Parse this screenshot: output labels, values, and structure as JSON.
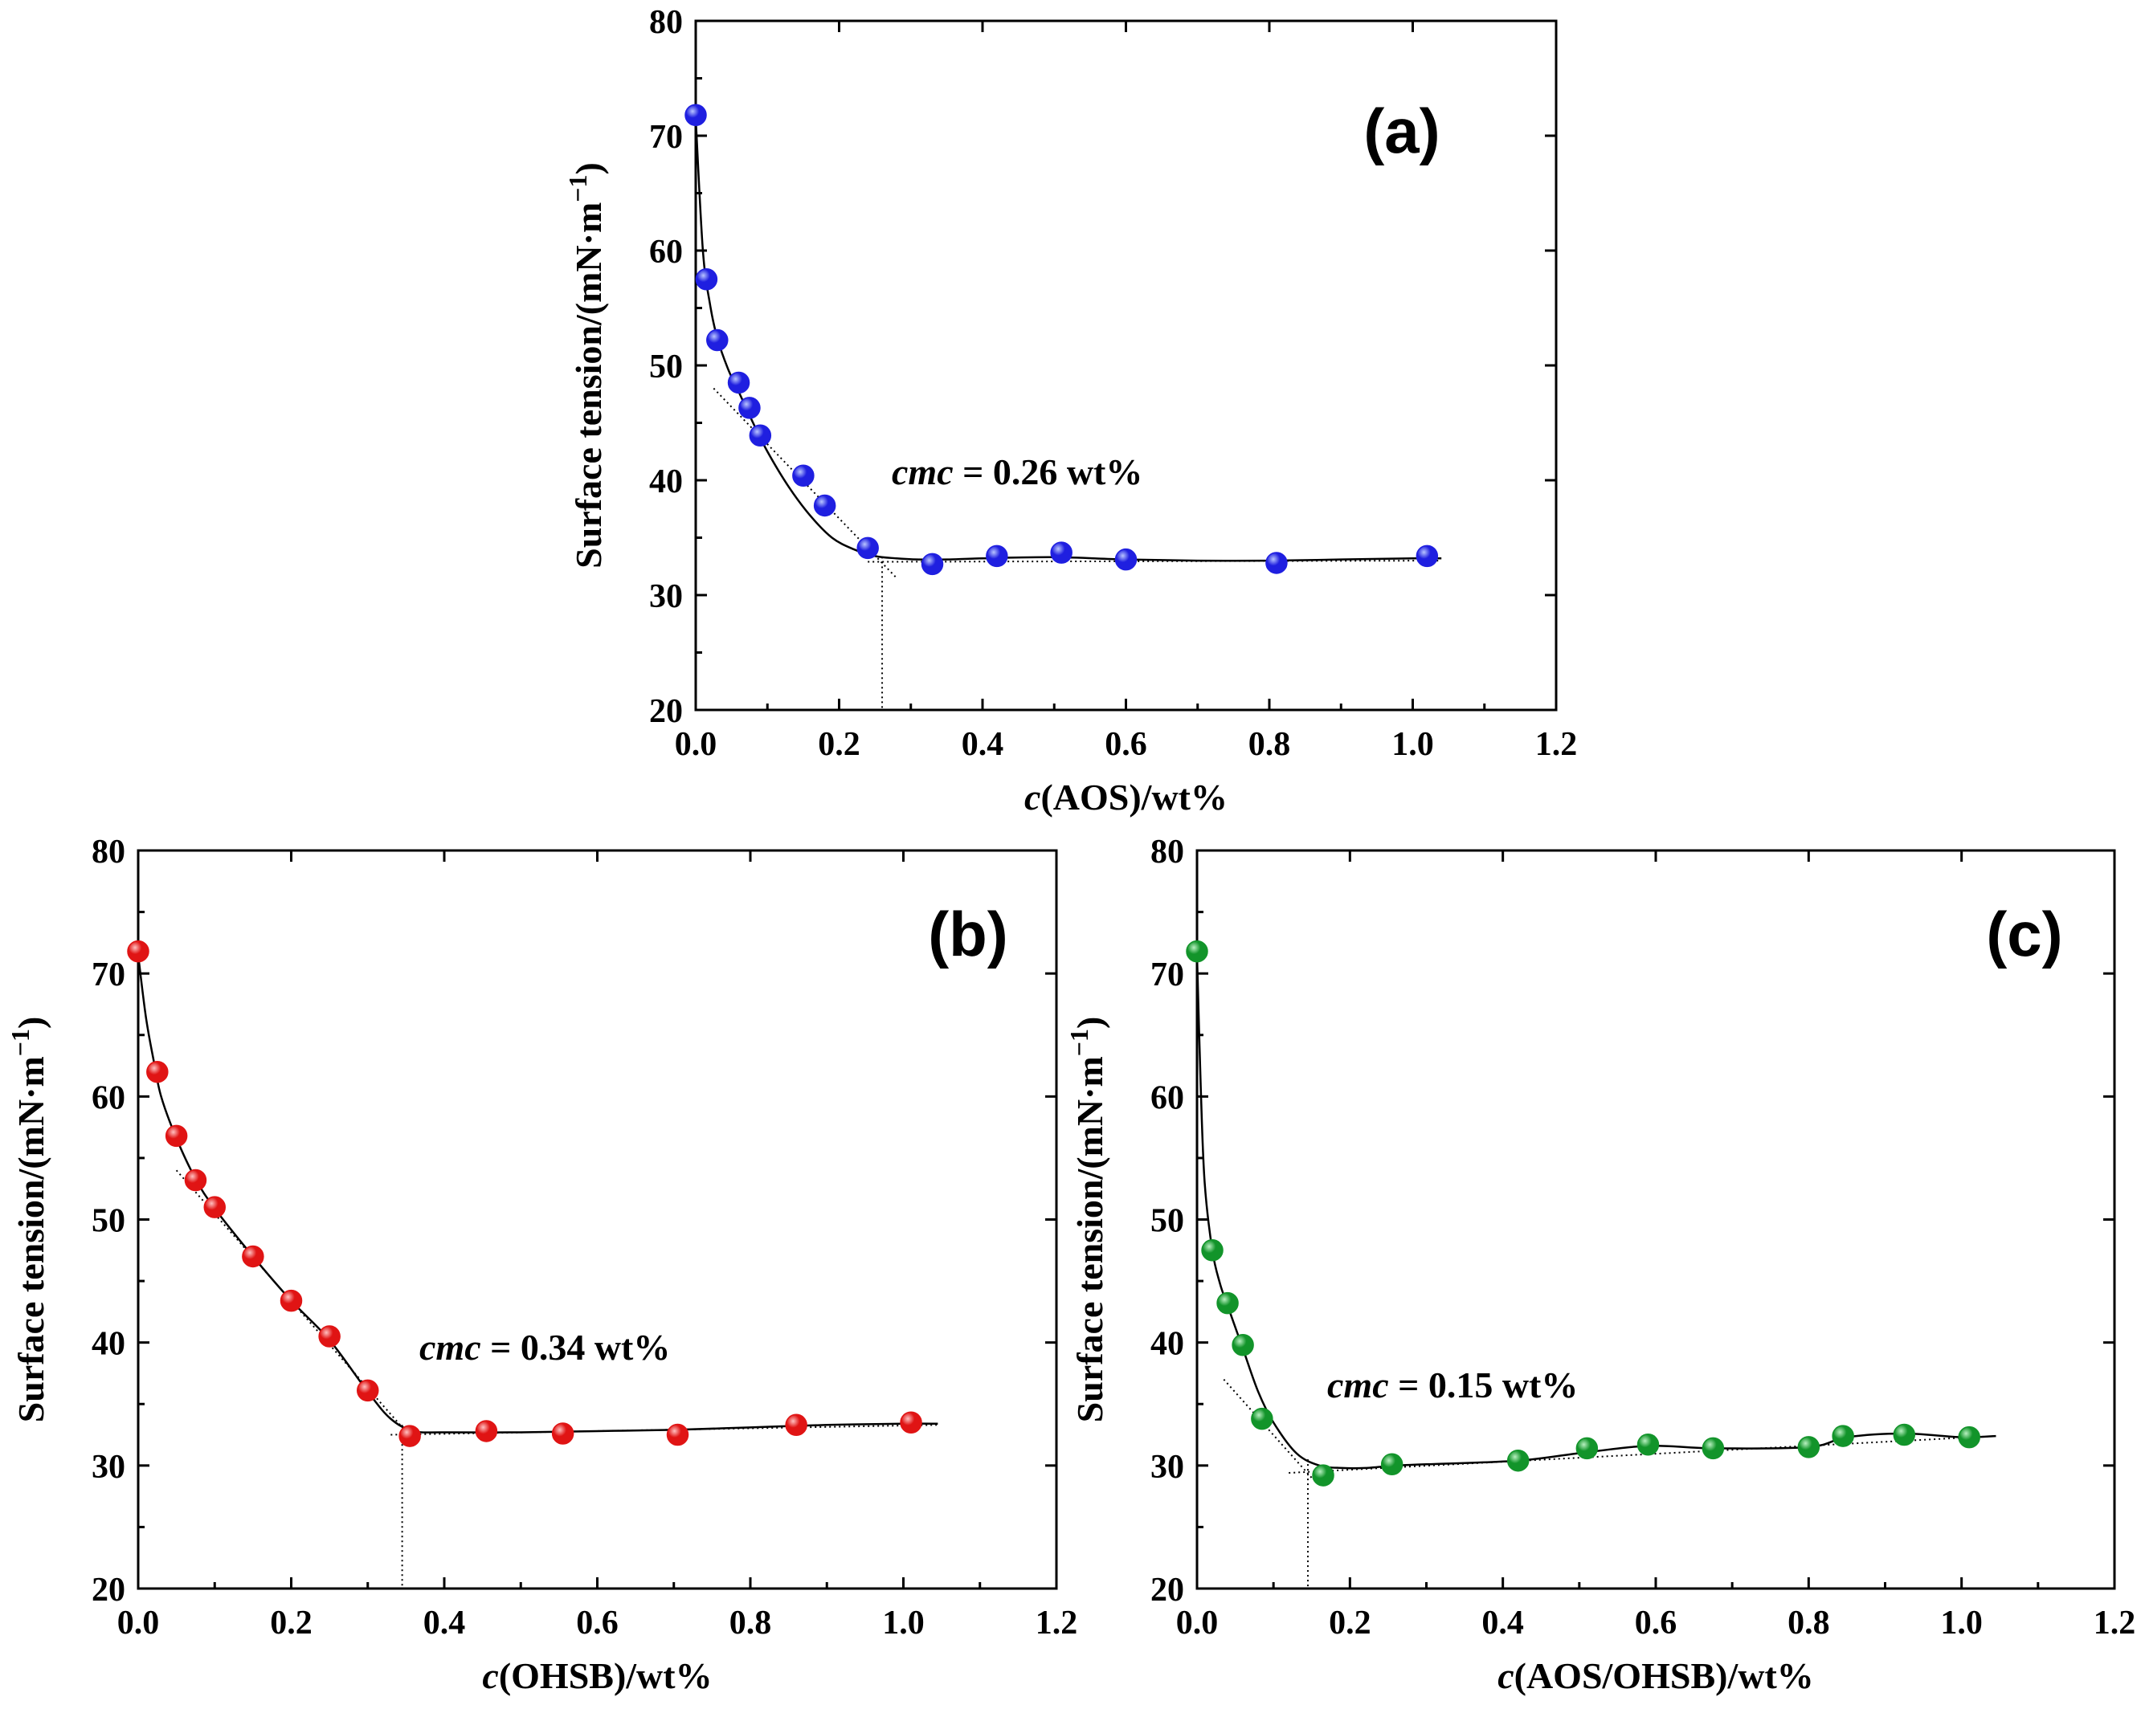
{
  "chart_data": [
    {
      "id": "a",
      "type": "scatter",
      "panel_label": "(a)",
      "xlabel_italic": "c",
      "xlabel_rest": "(AOS)/wt%",
      "ylabel": "Surface tension/(mN·m",
      "ylabel_sup": "−1",
      "ylabel_close": ")",
      "xlim": [
        0.0,
        1.2
      ],
      "ylim": [
        20,
        80
      ],
      "xticks": [
        "0.0",
        "0.2",
        "0.4",
        "0.6",
        "0.8",
        "1.0",
        "1.2"
      ],
      "yticks": [
        "20",
        "30",
        "40",
        "50",
        "60",
        "70",
        "80"
      ],
      "cmc_italic": "cmc",
      "cmc_rest": " = 0.26 wt%",
      "cmc_value": 0.26,
      "color": "#1f1fe0",
      "highlight": "#b8c4ff",
      "series": [
        {
          "name": "AOS",
          "x": [
            0.0,
            0.015,
            0.03,
            0.06,
            0.075,
            0.09,
            0.15,
            0.18,
            0.24,
            0.33,
            0.42,
            0.51,
            0.6,
            0.81,
            1.02
          ],
          "y": [
            71.8,
            57.5,
            52.2,
            48.5,
            46.3,
            43.9,
            40.4,
            37.8,
            34.1,
            32.7,
            33.4,
            33.7,
            33.1,
            32.8,
            33.4
          ]
        }
      ],
      "fit_curve": {
        "x": [
          0.0,
          0.01,
          0.02,
          0.03,
          0.045,
          0.06,
          0.08,
          0.1,
          0.13,
          0.16,
          0.19,
          0.22,
          0.25,
          0.28,
          0.31,
          0.35,
          0.4,
          0.5,
          0.6,
          0.7,
          0.8,
          0.9,
          1.0,
          1.04
        ],
        "y": [
          71.5,
          60.0,
          55.3,
          52.4,
          49.7,
          47.7,
          45.0,
          42.5,
          39.4,
          36.9,
          35.0,
          34.0,
          33.4,
          33.2,
          33.1,
          33.1,
          33.2,
          33.3,
          33.1,
          33.0,
          33.0,
          33.1,
          33.2,
          33.2
        ]
      },
      "tangent_lines": [
        {
          "x": [
            0.025,
            0.28
          ],
          "y": [
            48.0,
            31.5
          ]
        },
        {
          "x": [
            0.24,
            1.04
          ],
          "y": [
            32.9,
            33.0
          ]
        }
      ]
    },
    {
      "id": "b",
      "type": "scatter",
      "panel_label": "(b)",
      "xlabel_italic": "c",
      "xlabel_rest": "(OHSB)/wt%",
      "ylabel": "Surface tension/(mN·m",
      "ylabel_sup": "−1",
      "ylabel_close": ")",
      "xlim": [
        0.0,
        1.2
      ],
      "ylim": [
        20,
        80
      ],
      "xticks": [
        "0.0",
        "0.2",
        "0.4",
        "0.6",
        "0.8",
        "1.0",
        "1.2"
      ],
      "yticks": [
        "20",
        "30",
        "40",
        "50",
        "60",
        "70",
        "80"
      ],
      "cmc_italic": "cmc",
      "cmc_rest": " = 0.34 wt%",
      "cmc_value": 0.345,
      "color": "#e01414",
      "highlight": "#ffc0c0",
      "series": [
        {
          "name": "OHSB",
          "x": [
            0.0,
            0.025,
            0.05,
            0.075,
            0.1,
            0.15,
            0.2,
            0.25,
            0.3,
            0.355,
            0.455,
            0.555,
            0.705,
            0.86,
            1.01
          ],
          "y": [
            71.8,
            62.0,
            56.8,
            53.2,
            51.0,
            47.0,
            43.4,
            40.5,
            36.1,
            32.4,
            32.8,
            32.6,
            32.5,
            33.3,
            33.5
          ]
        }
      ],
      "fit_curve": {
        "x": [
          0.0,
          0.01,
          0.02,
          0.03,
          0.05,
          0.075,
          0.1,
          0.15,
          0.2,
          0.25,
          0.3,
          0.33,
          0.36,
          0.4,
          0.5,
          0.6,
          0.7,
          0.8,
          0.9,
          1.0,
          1.045
        ],
        "y": [
          71.5,
          66.5,
          63.0,
          60.0,
          56.6,
          53.3,
          50.9,
          47.0,
          43.4,
          40.2,
          36.0,
          33.8,
          32.8,
          32.7,
          32.7,
          32.8,
          32.9,
          33.1,
          33.3,
          33.4,
          33.4
        ]
      },
      "tangent_lines": [
        {
          "x": [
            0.05,
            0.355
          ],
          "y": [
            54.0,
            32.4
          ]
        },
        {
          "x": [
            0.33,
            1.045
          ],
          "y": [
            32.5,
            33.3
          ]
        }
      ]
    },
    {
      "id": "c",
      "type": "scatter",
      "panel_label": "(c)",
      "xlabel_italic": "c",
      "xlabel_rest": "(AOS/OHSB)/wt%",
      "ylabel": "Surface tension/(mN·m",
      "ylabel_sup": "−1",
      "ylabel_close": ")",
      "xlim": [
        0.0,
        1.2
      ],
      "ylim": [
        20,
        80
      ],
      "xticks": [
        "0.0",
        "0.2",
        "0.4",
        "0.6",
        "0.8",
        "1.0",
        "1.2"
      ],
      "yticks": [
        "20",
        "30",
        "40",
        "50",
        "60",
        "70",
        "80"
      ],
      "cmc_italic": "cmc",
      "cmc_rest": " = 0.15 wt%",
      "cmc_value": 0.145,
      "color": "#12942a",
      "highlight": "#b8f0c0",
      "series": [
        {
          "name": "AOS/OHSB",
          "x": [
            0.0,
            0.02,
            0.04,
            0.06,
            0.085,
            0.165,
            0.255,
            0.42,
            0.51,
            0.59,
            0.675,
            0.8,
            0.845,
            0.925,
            1.01
          ],
          "y": [
            71.8,
            47.5,
            43.2,
            39.8,
            33.8,
            29.2,
            30.1,
            30.4,
            31.4,
            31.7,
            31.4,
            31.5,
            32.4,
            32.5,
            32.3
          ]
        }
      ],
      "fit_curve": {
        "x": [
          0.0,
          0.005,
          0.01,
          0.02,
          0.03,
          0.04,
          0.06,
          0.08,
          0.1,
          0.13,
          0.16,
          0.19,
          0.22,
          0.26,
          0.3,
          0.42,
          0.5,
          0.59,
          0.675,
          0.8,
          0.85,
          0.925,
          1.0,
          1.045
        ],
        "y": [
          71.5,
          60.5,
          53.0,
          47.5,
          44.8,
          43.0,
          39.5,
          36.0,
          33.5,
          31.0,
          30.0,
          29.8,
          29.8,
          30.0,
          30.1,
          30.4,
          31.0,
          31.6,
          31.4,
          31.5,
          32.3,
          32.6,
          32.3,
          32.4
        ]
      },
      "tangent_lines": [
        {
          "x": [
            0.035,
            0.15
          ],
          "y": [
            37.0,
            29.0
          ]
        },
        {
          "x": [
            0.12,
            1.045
          ],
          "y": [
            29.4,
            32.4
          ]
        }
      ]
    }
  ]
}
